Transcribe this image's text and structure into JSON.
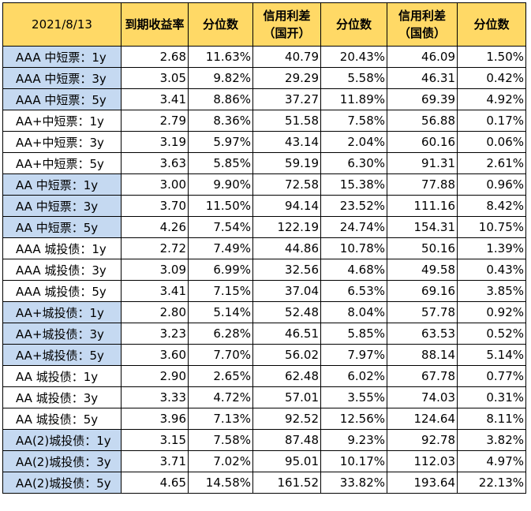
{
  "headers": [
    "2021/8/13",
    "到期收益率",
    "分位数",
    "信用利差（国开）",
    "分位数",
    "信用利差（国债）",
    "分位数"
  ],
  "rows": [
    {
      "label": "AAA 中短票：1y",
      "v": [
        "2.68",
        "11.63%",
        "40.79",
        "20.43%",
        "46.09",
        "1.50%"
      ],
      "blue": true
    },
    {
      "label": "AAA 中短票：3y",
      "v": [
        "3.05",
        "9.82%",
        "29.29",
        "5.58%",
        "46.31",
        "0.42%"
      ],
      "blue": true
    },
    {
      "label": "AAA 中短票：5y",
      "v": [
        "3.41",
        "8.86%",
        "37.27",
        "11.89%",
        "69.39",
        "4.92%"
      ],
      "blue": true
    },
    {
      "label": "AA+中短票：1y",
      "v": [
        "2.79",
        "8.36%",
        "51.58",
        "7.58%",
        "56.88",
        "0.17%"
      ],
      "blue": false
    },
    {
      "label": "AA+中短票：3y",
      "v": [
        "3.19",
        "5.97%",
        "43.14",
        "2.04%",
        "60.16",
        "0.06%"
      ],
      "blue": false
    },
    {
      "label": "AA+中短票：5y",
      "v": [
        "3.63",
        "5.85%",
        "59.19",
        "6.30%",
        "91.31",
        "2.61%"
      ],
      "blue": false
    },
    {
      "label": "AA 中短票：1y",
      "v": [
        "3.00",
        "9.90%",
        "72.58",
        "15.38%",
        "77.88",
        "0.96%"
      ],
      "blue": true
    },
    {
      "label": "AA 中短票：3y",
      "v": [
        "3.70",
        "11.50%",
        "94.14",
        "23.52%",
        "111.16",
        "8.42%"
      ],
      "blue": true
    },
    {
      "label": "AA 中短票：5y",
      "v": [
        "4.26",
        "7.54%",
        "122.19",
        "24.74%",
        "154.31",
        "10.75%"
      ],
      "blue": true
    },
    {
      "label": "AAA 城投债：1y",
      "v": [
        "2.72",
        "7.49%",
        "44.86",
        "10.78%",
        "50.16",
        "1.39%"
      ],
      "blue": false
    },
    {
      "label": "AAA 城投债：3y",
      "v": [
        "3.09",
        "6.99%",
        "32.56",
        "4.68%",
        "49.58",
        "0.43%"
      ],
      "blue": false
    },
    {
      "label": "AAA 城投债：5y",
      "v": [
        "3.41",
        "7.15%",
        "37.04",
        "6.53%",
        "69.16",
        "3.85%"
      ],
      "blue": false
    },
    {
      "label": "AA+城投债：1y",
      "v": [
        "2.80",
        "5.14%",
        "52.48",
        "8.04%",
        "57.78",
        "0.92%"
      ],
      "blue": true
    },
    {
      "label": "AA+城投债：3y",
      "v": [
        "3.23",
        "6.28%",
        "46.51",
        "5.85%",
        "63.53",
        "0.52%"
      ],
      "blue": true
    },
    {
      "label": "AA+城投债：5y",
      "v": [
        "3.60",
        "7.70%",
        "56.02",
        "7.97%",
        "88.14",
        "5.14%"
      ],
      "blue": true
    },
    {
      "label": "AA 城投债：1y",
      "v": [
        "2.90",
        "2.65%",
        "62.48",
        "6.02%",
        "67.78",
        "0.77%"
      ],
      "blue": false
    },
    {
      "label": "AA 城投债：3y",
      "v": [
        "3.33",
        "4.72%",
        "57.01",
        "3.55%",
        "74.03",
        "0.31%"
      ],
      "blue": false
    },
    {
      "label": "AA 城投债：5y",
      "v": [
        "3.96",
        "7.13%",
        "92.52",
        "12.56%",
        "124.64",
        "8.11%"
      ],
      "blue": false
    },
    {
      "label": "AA(2)城投债：1y",
      "v": [
        "3.15",
        "7.58%",
        "87.48",
        "9.23%",
        "92.78",
        "3.82%"
      ],
      "blue": true
    },
    {
      "label": "AA(2)城投债：3y",
      "v": [
        "3.71",
        "7.02%",
        "95.01",
        "10.17%",
        "112.03",
        "4.97%"
      ],
      "blue": true
    },
    {
      "label": "AA(2)城投债：5y",
      "v": [
        "4.65",
        "14.58%",
        "161.52",
        "33.82%",
        "193.64",
        "22.13%"
      ],
      "blue": true
    }
  ]
}
